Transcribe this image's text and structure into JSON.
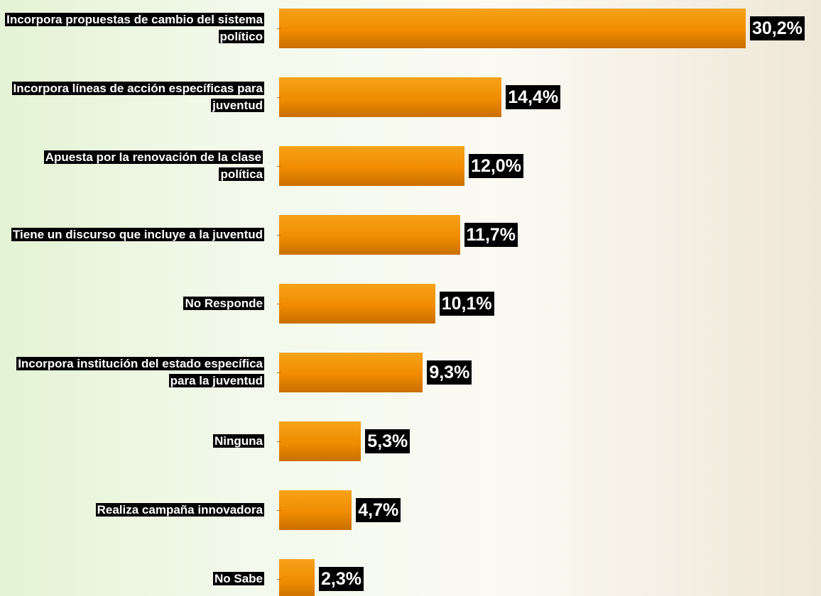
{
  "chart_data": {
    "type": "bar",
    "orientation": "horizontal",
    "categories": [
      "Incorpora propuestas de cambio del sistema político",
      "Incorpora líneas de acción específicas para juventud",
      "Apuesta por la renovación de la clase política",
      "Tiene un discurso que incluye a la juventud",
      "No Responde",
      "Incorpora institución del estado específica para la juventud",
      "Ninguna",
      "Realiza campaña innovadora",
      "No Sabe"
    ],
    "values": [
      30.2,
      14.4,
      12.0,
      11.7,
      10.1,
      9.3,
      5.3,
      4.7,
      2.3
    ],
    "value_labels": [
      "30,2%",
      "14,4%",
      "12,0%",
      "11,7%",
      "10,1%",
      "9,3%",
      "5,3%",
      "4,7%",
      "2,3%"
    ],
    "color": "#f08c00"
  }
}
